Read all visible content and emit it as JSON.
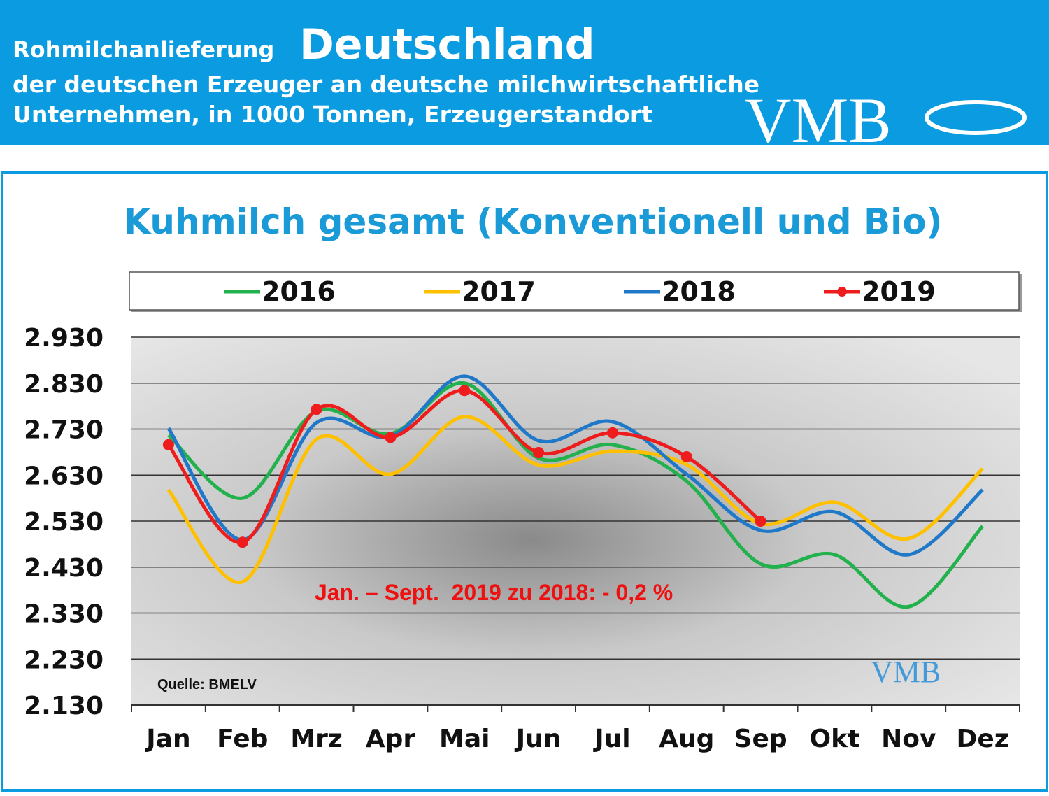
{
  "header": {
    "title_small": "Rohmilchanlieferung",
    "title_big": "Deutschland",
    "subtitle_1": "der deutschen Erzeuger an deutsche milchwirtschaftliche",
    "subtitle_2": "Unternehmen, in 1000 Tonnen, Erzeugerstandort",
    "logo": "VMB"
  },
  "chart_data": {
    "type": "line",
    "title": "Kuhmilch gesamt (Konventionell und Bio)",
    "categories": [
      "Jan",
      "Feb",
      "Mrz",
      "Apr",
      "Mai",
      "Jun",
      "Jul",
      "Aug",
      "Sep",
      "Okt",
      "Nov",
      "Dez"
    ],
    "series": [
      {
        "name": "2016",
        "color": "#22b14c",
        "values": [
          2717,
          2580,
          2769,
          2720,
          2830,
          2667,
          2696,
          2617,
          2437,
          2457,
          2344,
          2519
        ]
      },
      {
        "name": "2017",
        "color": "#ffc000",
        "values": [
          2598,
          2398,
          2708,
          2632,
          2757,
          2652,
          2682,
          2653,
          2525,
          2571,
          2492,
          2644
        ]
      },
      {
        "name": "2018",
        "color": "#1f78c8",
        "values": [
          2732,
          2489,
          2744,
          2714,
          2845,
          2705,
          2746,
          2632,
          2510,
          2550,
          2457,
          2598
        ]
      },
      {
        "name": "2019",
        "color": "#ee1c1c",
        "markers": true,
        "values": [
          2696,
          2484,
          2773,
          2712,
          2814,
          2679,
          2722,
          2670,
          2530,
          null,
          null,
          null
        ]
      }
    ],
    "ylim": [
      2130,
      2930
    ],
    "yticks": [
      {
        "value": 2130,
        "label": "2.130"
      },
      {
        "value": 2230,
        "label": "2.230"
      },
      {
        "value": 2330,
        "label": "2.330"
      },
      {
        "value": 2430,
        "label": "2.430"
      },
      {
        "value": 2530,
        "label": "2.530"
      },
      {
        "value": 2630,
        "label": "2.630"
      },
      {
        "value": 2730,
        "label": "2.730"
      },
      {
        "value": 2830,
        "label": "2.830"
      },
      {
        "value": 2930,
        "label": "2.930"
      }
    ],
    "grid": true,
    "legend": "top",
    "annotation": "Jan. – Sept.  2019 zu 2018: - 0,2 %",
    "source": "Quelle: BMELV",
    "watermark": "VMB"
  }
}
